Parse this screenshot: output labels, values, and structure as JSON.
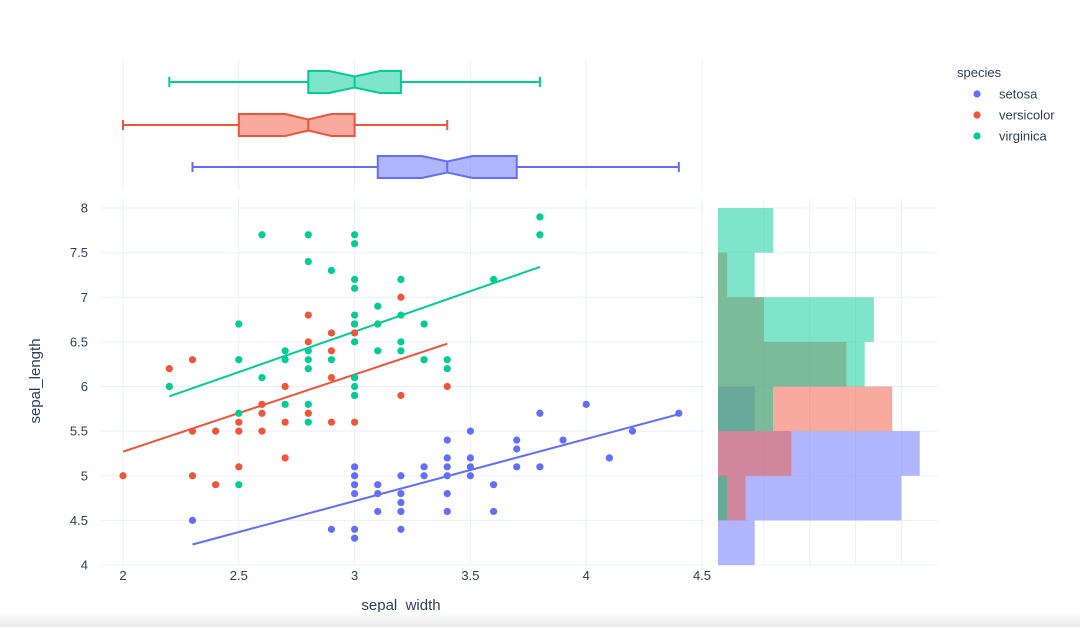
{
  "chart_data": {
    "type": "scatter",
    "title": "",
    "xlabel": "sepal_width",
    "ylabel": "sepal_length",
    "xlim": [
      1.95,
      4.5
    ],
    "ylim": [
      4.0,
      8.1
    ],
    "xticks": [
      2,
      2.5,
      3,
      3.5,
      4,
      4.5
    ],
    "xtick_labels": [
      "2",
      "2.5",
      "3",
      "3.5",
      "4",
      "4.5"
    ],
    "yticks": [
      4,
      4.5,
      5,
      5.5,
      6,
      6.5,
      7,
      7.5,
      8
    ],
    "ytick_labels": [
      "4",
      "4.5",
      "5",
      "5.5",
      "6",
      "6.5",
      "7",
      "7.5",
      "8"
    ],
    "legend_title": "species",
    "legend_position": "top-right",
    "marginal_x": "box (notched)",
    "marginal_y": "histogram",
    "histogram_bins": [
      [
        4.0,
        4.5
      ],
      [
        4.5,
        5.0
      ],
      [
        5.0,
        5.5
      ],
      [
        5.5,
        6.0
      ],
      [
        6.0,
        6.5
      ],
      [
        6.5,
        7.0
      ],
      [
        7.0,
        7.5
      ],
      [
        7.5,
        8.0
      ]
    ],
    "series": [
      {
        "name": "setosa",
        "color": "#636efa",
        "points": [
          [
            2.3,
            4.5
          ],
          [
            2.9,
            4.4
          ],
          [
            3.0,
            4.4
          ],
          [
            3.0,
            4.3
          ],
          [
            3.2,
            4.4
          ],
          [
            3.1,
            4.6
          ],
          [
            3.2,
            4.6
          ],
          [
            3.4,
            4.6
          ],
          [
            3.6,
            4.6
          ],
          [
            3.2,
            4.7
          ],
          [
            3.0,
            4.8
          ],
          [
            3.0,
            4.9
          ],
          [
            3.1,
            4.8
          ],
          [
            3.2,
            4.8
          ],
          [
            3.4,
            4.8
          ],
          [
            3.1,
            4.9
          ],
          [
            3.6,
            4.9
          ],
          [
            3.0,
            5.0
          ],
          [
            3.2,
            5.0
          ],
          [
            3.3,
            5.0
          ],
          [
            3.4,
            5.0
          ],
          [
            3.5,
            5.0
          ],
          [
            3.0,
            5.1
          ],
          [
            3.3,
            5.1
          ],
          [
            3.4,
            5.1
          ],
          [
            3.5,
            5.1
          ],
          [
            3.7,
            5.1
          ],
          [
            3.8,
            5.1
          ],
          [
            3.4,
            5.2
          ],
          [
            3.5,
            5.2
          ],
          [
            4.1,
            5.2
          ],
          [
            3.7,
            5.3
          ],
          [
            3.4,
            5.4
          ],
          [
            3.7,
            5.4
          ],
          [
            3.9,
            5.4
          ],
          [
            3.5,
            5.5
          ],
          [
            4.2,
            5.5
          ],
          [
            3.8,
            5.7
          ],
          [
            4.4,
            5.7
          ],
          [
            4.0,
            5.8
          ]
        ],
        "fit_line": [
          [
            2.3,
            4.23
          ],
          [
            4.4,
            5.69
          ]
        ],
        "histogram_counts": [
          4,
          20,
          22,
          4,
          0,
          0,
          0,
          0
        ],
        "box": {
          "min": 2.3,
          "q1": 3.1,
          "median": 3.4,
          "q3": 3.7,
          "max": 4.4,
          "notch_low": 3.29,
          "notch_high": 3.51
        }
      },
      {
        "name": "versicolor",
        "color": "#ef553b",
        "points": [
          [
            2.0,
            5.0
          ],
          [
            2.2,
            6.0
          ],
          [
            2.2,
            6.2
          ],
          [
            2.3,
            5.0
          ],
          [
            2.3,
            5.5
          ],
          [
            2.3,
            6.3
          ],
          [
            2.4,
            4.9
          ],
          [
            2.4,
            5.5
          ],
          [
            2.5,
            5.1
          ],
          [
            2.5,
            5.5
          ],
          [
            2.5,
            5.6
          ],
          [
            2.6,
            5.5
          ],
          [
            2.6,
            5.7
          ],
          [
            2.6,
            5.8
          ],
          [
            2.7,
            5.2
          ],
          [
            2.7,
            5.6
          ],
          [
            2.7,
            6.0
          ],
          [
            2.8,
            5.7
          ],
          [
            2.8,
            6.5
          ],
          [
            2.8,
            6.8
          ],
          [
            2.9,
            5.6
          ],
          [
            2.9,
            6.1
          ],
          [
            2.9,
            6.4
          ],
          [
            2.9,
            6.6
          ],
          [
            3.0,
            5.6
          ],
          [
            3.0,
            5.9
          ],
          [
            3.0,
            6.1
          ],
          [
            3.0,
            6.6
          ],
          [
            3.0,
            6.7
          ],
          [
            3.1,
            6.7
          ],
          [
            3.2,
            5.9
          ],
          [
            3.2,
            7.0
          ],
          [
            3.3,
            6.3
          ],
          [
            3.4,
            6.0
          ]
        ],
        "fit_line": [
          [
            2.0,
            5.27
          ],
          [
            3.4,
            6.48
          ]
        ],
        "histogram_counts": [
          0,
          3,
          8,
          19,
          14,
          5,
          1,
          0
        ],
        "box": {
          "min": 2.0,
          "q1": 2.5,
          "median": 2.8,
          "q3": 3.0,
          "max": 3.4,
          "notch_low": 2.7,
          "notch_high": 2.9
        }
      },
      {
        "name": "virginica",
        "color": "#00cc96",
        "points": [
          [
            2.2,
            6.0
          ],
          [
            2.5,
            4.9
          ],
          [
            2.5,
            5.7
          ],
          [
            2.5,
            6.3
          ],
          [
            2.5,
            6.7
          ],
          [
            2.6,
            6.1
          ],
          [
            2.6,
            7.7
          ],
          [
            2.7,
            5.8
          ],
          [
            2.7,
            6.3
          ],
          [
            2.7,
            6.4
          ],
          [
            2.8,
            5.6
          ],
          [
            2.8,
            5.8
          ],
          [
            2.8,
            6.2
          ],
          [
            2.8,
            6.3
          ],
          [
            2.8,
            6.4
          ],
          [
            2.8,
            7.4
          ],
          [
            2.8,
            7.7
          ],
          [
            2.9,
            6.3
          ],
          [
            2.9,
            7.3
          ],
          [
            3.0,
            5.9
          ],
          [
            3.0,
            6.0
          ],
          [
            3.0,
            6.1
          ],
          [
            3.0,
            6.5
          ],
          [
            3.0,
            6.7
          ],
          [
            3.0,
            6.8
          ],
          [
            3.0,
            7.1
          ],
          [
            3.0,
            7.2
          ],
          [
            3.0,
            7.6
          ],
          [
            3.0,
            7.7
          ],
          [
            3.1,
            6.4
          ],
          [
            3.1,
            6.7
          ],
          [
            3.1,
            6.9
          ],
          [
            3.2,
            6.4
          ],
          [
            3.2,
            6.5
          ],
          [
            3.2,
            6.8
          ],
          [
            3.2,
            7.2
          ],
          [
            3.3,
            6.3
          ],
          [
            3.3,
            6.7
          ],
          [
            3.4,
            6.2
          ],
          [
            3.4,
            6.3
          ],
          [
            3.6,
            7.2
          ],
          [
            3.8,
            7.7
          ],
          [
            3.8,
            7.9
          ]
        ],
        "fit_line": [
          [
            2.2,
            5.89
          ],
          [
            3.8,
            7.34
          ]
        ],
        "histogram_counts": [
          0,
          1,
          0,
          6,
          16,
          17,
          4,
          6
        ],
        "box": {
          "min": 2.2,
          "q1": 2.8,
          "median": 3.0,
          "q3": 3.2,
          "max": 3.8,
          "notch_low": 2.89,
          "notch_high": 3.11
        }
      }
    ]
  }
}
